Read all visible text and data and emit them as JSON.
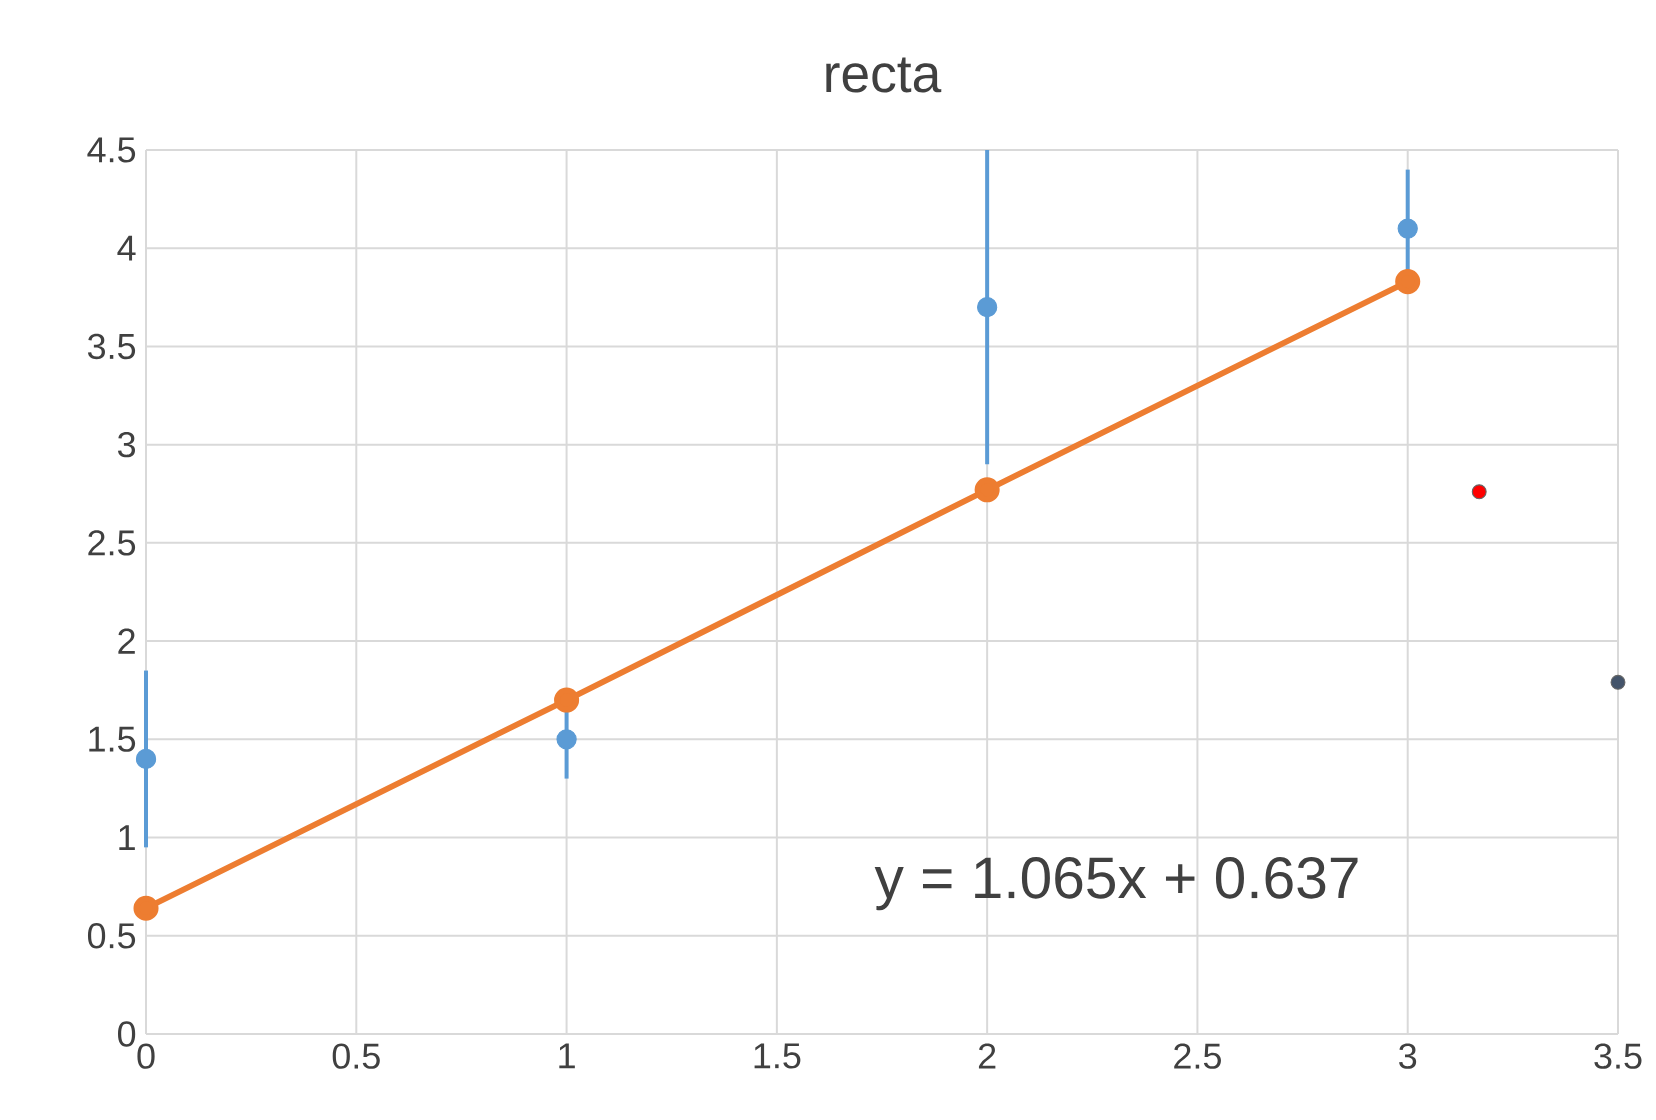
{
  "chart_data": {
    "type": "scatter",
    "title": "recta",
    "xlim": [
      0,
      3.5
    ],
    "xticks": [
      0,
      0.5,
      1,
      1.5,
      2,
      2.5,
      3,
      3.5
    ],
    "ylim": [
      0,
      4.5
    ],
    "yticks": [
      0,
      0.5,
      1,
      1.5,
      2,
      2.5,
      3,
      3.5,
      4,
      4.5
    ],
    "grid": true,
    "marker": "circle",
    "series": [
      {
        "color": "#5b9bd5",
        "x": [
          0,
          1,
          2,
          3
        ],
        "values": [
          1.4,
          1.5,
          3.7,
          4.1
        ],
        "errors": [
          0.45,
          0.2,
          0.8,
          0.3
        ]
      },
      {
        "type": "line",
        "color": "#ed7d31",
        "x": [
          0,
          1,
          2,
          3
        ],
        "values": [
          0.64,
          1.7,
          2.77,
          3.83
        ]
      },
      {
        "color": "#ff0000",
        "x": [
          3.17
        ],
        "values": [
          2.76
        ]
      },
      {
        "color": "#44546a",
        "x": [
          3.5
        ],
        "values": [
          1.79
        ]
      }
    ],
    "annotations": [
      "y = 1.065x + 0.637"
    ]
  }
}
